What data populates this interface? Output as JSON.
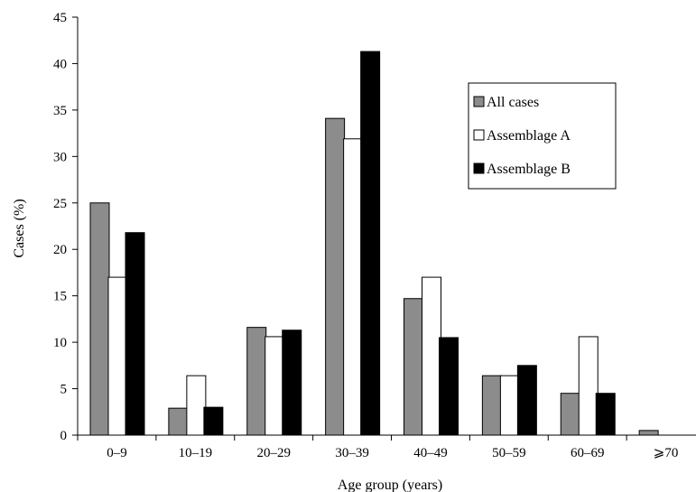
{
  "chart_data": {
    "type": "bar",
    "title": "",
    "xlabel": "Age group (years)",
    "ylabel": "Cases (%)",
    "ylim": [
      0,
      45
    ],
    "yticks": [
      0,
      5,
      10,
      15,
      20,
      25,
      30,
      35,
      40,
      45
    ],
    "grid": false,
    "legend_position": "top-right",
    "categories": [
      "0–9",
      "10–19",
      "20–29",
      "30–39",
      "40–49",
      "50–59",
      "60–69",
      "⩾70"
    ],
    "series": [
      {
        "name": "All cases",
        "color": "#8c8c8c",
        "values": [
          25.0,
          2.9,
          11.6,
          34.1,
          14.7,
          6.4,
          4.5,
          0.5
        ]
      },
      {
        "name": "Assemblage A",
        "color": "#ffffff",
        "values": [
          17.0,
          6.4,
          10.6,
          31.9,
          17.0,
          6.4,
          10.6,
          0
        ]
      },
      {
        "name": "Assemblage B",
        "color": "#000000",
        "values": [
          21.8,
          3.0,
          11.3,
          41.3,
          10.5,
          7.5,
          4.5,
          0
        ]
      }
    ]
  }
}
